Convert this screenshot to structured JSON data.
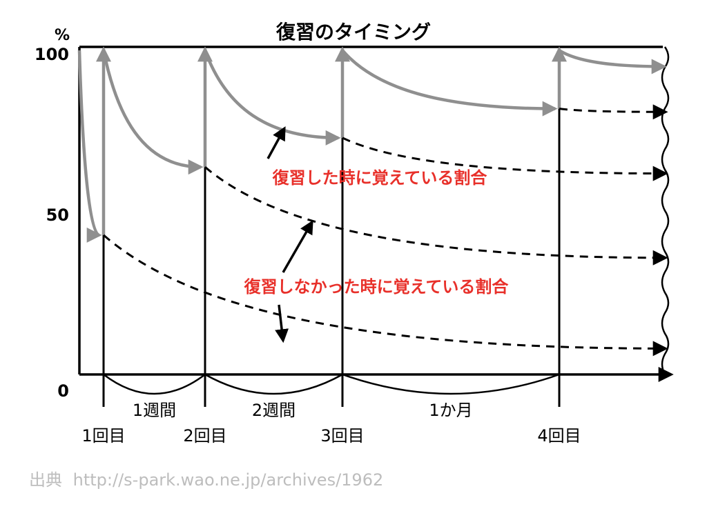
{
  "chart_data": {
    "type": "line",
    "title": "復習のタイミング",
    "y_unit": "%",
    "ylim": [
      0,
      100
    ],
    "y_ticks": [
      {
        "value": 0,
        "label": "0"
      },
      {
        "value": 50,
        "label": "50"
      },
      {
        "value": 100,
        "label": "100"
      }
    ],
    "x_axis": "time (broken, not to scale)",
    "review_points": [
      {
        "label": "1回目"
      },
      {
        "label": "2回目"
      },
      {
        "label": "3回目"
      },
      {
        "label": "4回目"
      }
    ],
    "intervals": [
      {
        "from": "1回目",
        "to": "2回目",
        "label": "1週間"
      },
      {
        "from": "2回目",
        "to": "3回目",
        "label": "2週間"
      },
      {
        "from": "3回目",
        "to": "4回目",
        "label": "1か月"
      }
    ],
    "series": [
      {
        "start": 0,
        "values": [
          100,
          43
        ],
        "style": "solid-gray",
        "end": "1回目"
      },
      {
        "start": "1回目",
        "values": [
          100,
          64
        ],
        "style": "solid-gray",
        "end": "2回目"
      },
      {
        "start": "2回目",
        "values": [
          100,
          73
        ],
        "style": "solid-gray",
        "end": "3回目"
      },
      {
        "start": "3回目",
        "values": [
          100,
          82
        ],
        "style": "solid-gray",
        "end": "4回目"
      },
      {
        "start": "4回目",
        "values": [
          100,
          95
        ],
        "style": "solid-gray",
        "end": "edge"
      },
      {
        "start": "1回目",
        "values": [
          43,
          8
        ],
        "style": "dashed-black",
        "end": "edge"
      },
      {
        "start": "2回目",
        "values": [
          64,
          36
        ],
        "style": "dashed-black",
        "end": "edge"
      },
      {
        "start": "3回目",
        "values": [
          73,
          62
        ],
        "style": "dashed-black",
        "end": "edge"
      },
      {
        "start": "4回目",
        "values": [
          82,
          81
        ],
        "style": "dashed-black",
        "end": "edge"
      }
    ],
    "annotations": [
      {
        "text": "復習した時に覚えている割合",
        "color": "#e8302a"
      },
      {
        "text": "復習しなかった時に覚えている割合",
        "color": "#e8302a"
      }
    ]
  },
  "source": {
    "label": "出典",
    "url": "http://s-park.wao.ne.jp/archives/1962"
  },
  "colors": {
    "axis": "#000000",
    "retained": "#8f8f8f",
    "forgotten": "#000000",
    "annotation": "#e8302a",
    "source": "#bdbdbd"
  }
}
